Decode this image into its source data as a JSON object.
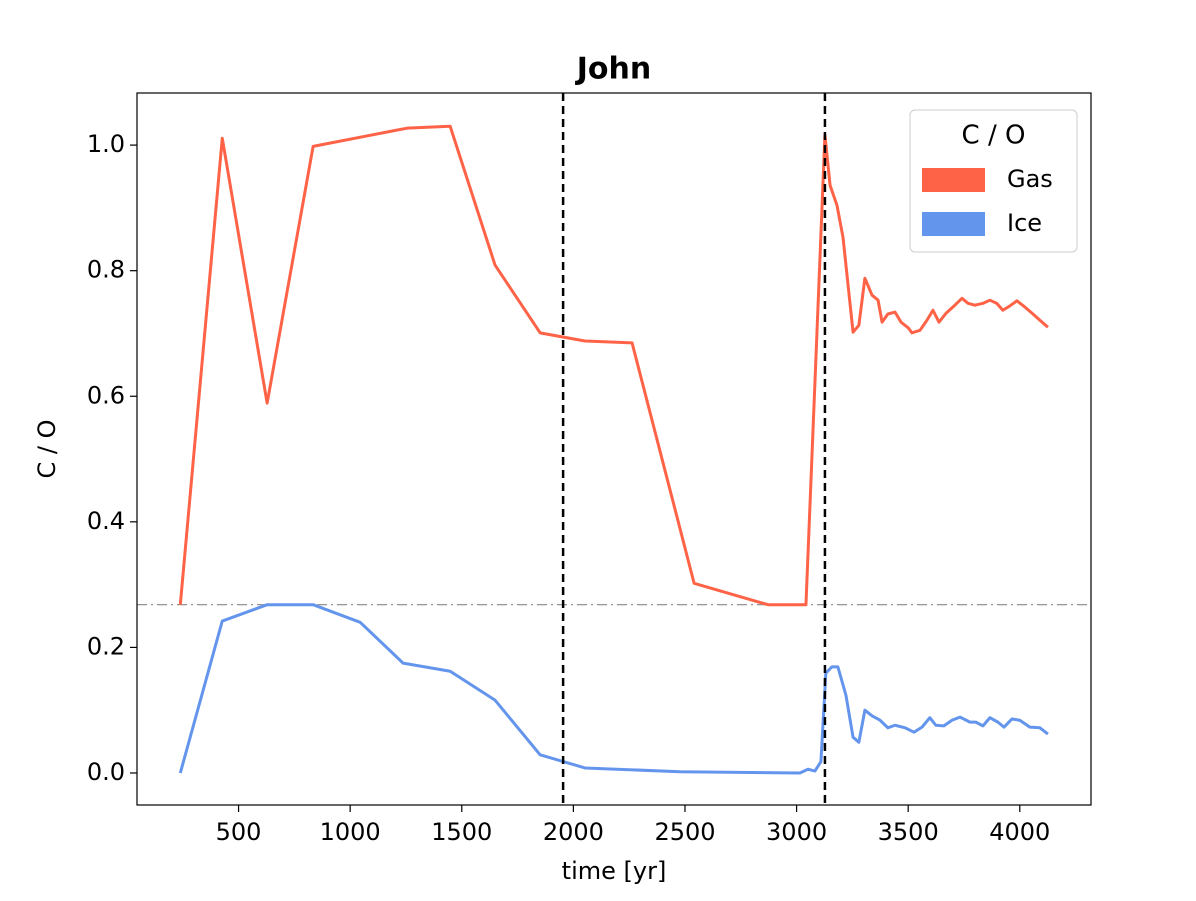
{
  "chart_data": {
    "type": "line",
    "title": "John",
    "xlabel": "time [yr]",
    "ylabel": "C / O",
    "xlim": [
      45,
      4319
    ],
    "ylim": [
      -0.051,
      1.083
    ],
    "xticks": [
      500,
      1000,
      1500,
      2000,
      2500,
      3000,
      3500,
      4000
    ],
    "yticks": [
      {
        "value": 0,
        "label": "0.0"
      },
      0.2,
      0.4,
      0.6,
      0.8,
      {
        "value": 1,
        "label": "1.0"
      }
    ],
    "vlines": [
      1954,
      3127
    ],
    "hline": 0.268,
    "legend": {
      "title": "C / O",
      "loc": "upper right"
    },
    "series": [
      {
        "name": "Gas",
        "color": "#ff6347",
        "x": [
          239,
          427,
          628,
          834,
          1255,
          1448,
          1649,
          1851,
          2052,
          2263,
          2541,
          2872,
          3042,
          3127,
          3150,
          3181,
          3208,
          3253,
          3279,
          3306,
          3338,
          3365,
          3383,
          3409,
          3441,
          3468,
          3500,
          3517,
          3553,
          3584,
          3611,
          3638,
          3669,
          3709,
          3741,
          3768,
          3799,
          3835,
          3866,
          3897,
          3924,
          3956,
          3987,
          4023,
          4059,
          4090,
          4126
        ],
        "values": [
          0.268,
          1.011,
          0.589,
          0.998,
          1.027,
          1.03,
          0.809,
          0.701,
          0.688,
          0.685,
          0.302,
          0.268,
          0.268,
          1.016,
          0.936,
          0.904,
          0.853,
          0.702,
          0.713,
          0.788,
          0.761,
          0.753,
          0.718,
          0.731,
          0.734,
          0.718,
          0.709,
          0.701,
          0.705,
          0.721,
          0.737,
          0.718,
          0.732,
          0.745,
          0.756,
          0.748,
          0.745,
          0.748,
          0.753,
          0.748,
          0.737,
          0.744,
          0.752,
          0.742,
          0.731,
          0.721,
          0.71
        ]
      },
      {
        "name": "Ice",
        "color": "#6495ed",
        "x": [
          239,
          427,
          628,
          834,
          1045,
          1237,
          1448,
          1649,
          1851,
          2052,
          2478,
          3015,
          3051,
          3082,
          3109,
          3131,
          3158,
          3185,
          3221,
          3253,
          3279,
          3306,
          3338,
          3374,
          3409,
          3441,
          3486,
          3526,
          3562,
          3597,
          3624,
          3660,
          3696,
          3732,
          3777,
          3803,
          3835,
          3866,
          3902,
          3929,
          3965,
          4000,
          4045,
          4090,
          4126
        ],
        "values": [
          0.0,
          0.242,
          0.268,
          0.268,
          0.24,
          0.175,
          0.162,
          0.116,
          0.029,
          0.008,
          0.002,
          0.0,
          0.006,
          0.003,
          0.018,
          0.159,
          0.169,
          0.169,
          0.124,
          0.057,
          0.049,
          0.1,
          0.091,
          0.084,
          0.072,
          0.076,
          0.072,
          0.065,
          0.073,
          0.088,
          0.076,
          0.075,
          0.084,
          0.089,
          0.081,
          0.081,
          0.075,
          0.088,
          0.081,
          0.073,
          0.086,
          0.084,
          0.073,
          0.072,
          0.062
        ]
      }
    ]
  }
}
